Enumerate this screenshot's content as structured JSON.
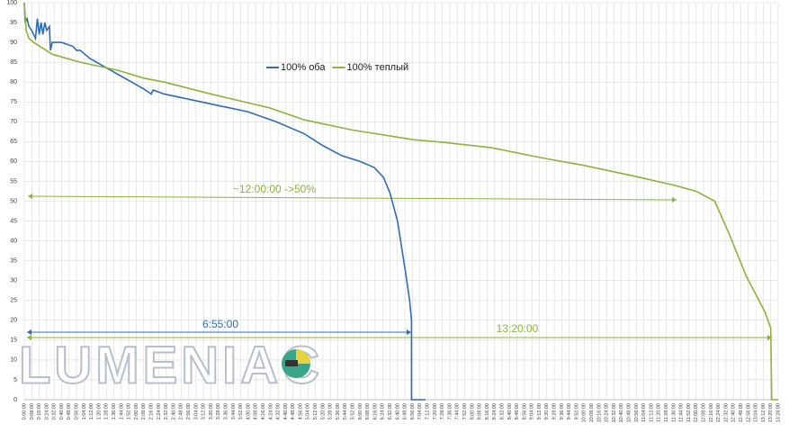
{
  "chart_data": {
    "type": "line",
    "legend": "top-center",
    "watermark": "LUMENIAC",
    "annotations": [
      "~12:00:00 ->50%",
      "6:55:00",
      "13:20:00"
    ],
    "ylim": [
      0,
      100
    ],
    "yticks": [
      0,
      5,
      10,
      15,
      20,
      25,
      30,
      35,
      40,
      45,
      50,
      55,
      60,
      65,
      70,
      75,
      80,
      85,
      90,
      95,
      100
    ],
    "xlim": [
      0,
      808
    ],
    "xticks": [
      {
        "value": 0,
        "label": "0:00:00"
      },
      {
        "value": 8,
        "label": "0:08:00"
      },
      {
        "value": 16,
        "label": "0:16:00"
      },
      {
        "value": 24,
        "label": "0:24:00"
      },
      {
        "value": 32,
        "label": "0:32:00"
      },
      {
        "value": 40,
        "label": "0:40:00"
      },
      {
        "value": 48,
        "label": "0:48:00"
      },
      {
        "value": 56,
        "label": "0:56:00"
      },
      {
        "value": 64,
        "label": "1:04:00"
      },
      {
        "value": 72,
        "label": "1:12:00"
      },
      {
        "value": 80,
        "label": "1:20:00"
      },
      {
        "value": 88,
        "label": "1:28:00"
      },
      {
        "value": 96,
        "label": "1:36:00"
      },
      {
        "value": 104,
        "label": "1:44:00"
      },
      {
        "value": 112,
        "label": "1:52:00"
      },
      {
        "value": 120,
        "label": "2:00:00"
      },
      {
        "value": 128,
        "label": "2:08:00"
      },
      {
        "value": 136,
        "label": "2:16:00"
      },
      {
        "value": 144,
        "label": "2:24:00"
      },
      {
        "value": 152,
        "label": "2:32:00"
      },
      {
        "value": 160,
        "label": "2:40:00"
      },
      {
        "value": 168,
        "label": "2:48:00"
      },
      {
        "value": 176,
        "label": "2:56:00"
      },
      {
        "value": 184,
        "label": "3:04:00"
      },
      {
        "value": 192,
        "label": "3:12:00"
      },
      {
        "value": 200,
        "label": "3:20:00"
      },
      {
        "value": 208,
        "label": "3:28:00"
      },
      {
        "value": 216,
        "label": "3:36:00"
      },
      {
        "value": 224,
        "label": "3:44:00"
      },
      {
        "value": 232,
        "label": "3:52:00"
      },
      {
        "value": 240,
        "label": "4:00:00"
      },
      {
        "value": 248,
        "label": "4:08:00"
      },
      {
        "value": 256,
        "label": "4:16:00"
      },
      {
        "value": 264,
        "label": "4:24:00"
      },
      {
        "value": 272,
        "label": "4:32:00"
      },
      {
        "value": 280,
        "label": "4:40:00"
      },
      {
        "value": 288,
        "label": "4:48:00"
      },
      {
        "value": 296,
        "label": "4:56:00"
      },
      {
        "value": 304,
        "label": "5:04:00"
      },
      {
        "value": 312,
        "label": "5:12:00"
      },
      {
        "value": 320,
        "label": "5:20:00"
      },
      {
        "value": 328,
        "label": "5:28:00"
      },
      {
        "value": 336,
        "label": "5:36:00"
      },
      {
        "value": 344,
        "label": "5:44:00"
      },
      {
        "value": 352,
        "label": "5:52:00"
      },
      {
        "value": 360,
        "label": "6:00:00"
      },
      {
        "value": 368,
        "label": "6:08:00"
      },
      {
        "value": 376,
        "label": "6:16:00"
      },
      {
        "value": 384,
        "label": "6:24:00"
      },
      {
        "value": 392,
        "label": "6:32:00"
      },
      {
        "value": 400,
        "label": "6:40:00"
      },
      {
        "value": 408,
        "label": "6:48:00"
      },
      {
        "value": 416,
        "label": "6:56:00"
      },
      {
        "value": 424,
        "label": "7:04:00"
      },
      {
        "value": 432,
        "label": "7:12:00"
      },
      {
        "value": 440,
        "label": "7:20:00"
      },
      {
        "value": 448,
        "label": "7:28:00"
      },
      {
        "value": 456,
        "label": "7:36:00"
      },
      {
        "value": 464,
        "label": "7:44:00"
      },
      {
        "value": 472,
        "label": "7:52:00"
      },
      {
        "value": 480,
        "label": "8:00:00"
      },
      {
        "value": 488,
        "label": "8:08:00"
      },
      {
        "value": 496,
        "label": "8:16:00"
      },
      {
        "value": 504,
        "label": "8:24:00"
      },
      {
        "value": 512,
        "label": "8:32:00"
      },
      {
        "value": 520,
        "label": "8:40:00"
      },
      {
        "value": 528,
        "label": "8:48:00"
      },
      {
        "value": 536,
        "label": "8:56:00"
      },
      {
        "value": 544,
        "label": "9:04:00"
      },
      {
        "value": 552,
        "label": "9:12:00"
      },
      {
        "value": 560,
        "label": "9:20:00"
      },
      {
        "value": 568,
        "label": "9:28:00"
      },
      {
        "value": 576,
        "label": "9:36:00"
      },
      {
        "value": 584,
        "label": "9:44:00"
      },
      {
        "value": 592,
        "label": "9:52:00"
      },
      {
        "value": 600,
        "label": "10:00:00"
      },
      {
        "value": 608,
        "label": "10:08:00"
      },
      {
        "value": 616,
        "label": "10:16:00"
      },
      {
        "value": 624,
        "label": "10:24:00"
      },
      {
        "value": 632,
        "label": "10:32:00"
      },
      {
        "value": 640,
        "label": "10:40:00"
      },
      {
        "value": 648,
        "label": "10:48:00"
      },
      {
        "value": 656,
        "label": "10:56:00"
      },
      {
        "value": 664,
        "label": "11:04:00"
      },
      {
        "value": 672,
        "label": "11:12:00"
      },
      {
        "value": 680,
        "label": "11:20:00"
      },
      {
        "value": 688,
        "label": "11:28:00"
      },
      {
        "value": 696,
        "label": "11:36:00"
      },
      {
        "value": 704,
        "label": "11:44:00"
      },
      {
        "value": 712,
        "label": "11:52:00"
      },
      {
        "value": 720,
        "label": "12:00:00"
      },
      {
        "value": 728,
        "label": "12:08:00"
      },
      {
        "value": 736,
        "label": "12:16:00"
      },
      {
        "value": 744,
        "label": "12:24:00"
      },
      {
        "value": 752,
        "label": "12:32:00"
      },
      {
        "value": 760,
        "label": "12:40:00"
      },
      {
        "value": 768,
        "label": "12:48:00"
      },
      {
        "value": 776,
        "label": "12:56:00"
      },
      {
        "value": 784,
        "label": "13:04:00"
      },
      {
        "value": 792,
        "label": "13:12:00"
      },
      {
        "value": 800,
        "label": "13:20:00"
      },
      {
        "value": 808,
        "label": "13:28:00"
      }
    ],
    "grid": true,
    "series": [
      {
        "name": "100% оба",
        "color": "#2e6db4",
        "x": [
          0,
          1,
          3,
          5,
          8,
          10,
          12,
          14,
          16,
          18,
          20,
          22,
          24,
          27,
          28,
          30,
          40,
          52,
          56,
          60,
          70,
          85,
          100,
          115,
          130,
          136,
          138,
          150,
          180,
          210,
          240,
          270,
          300,
          320,
          340,
          360,
          375,
          385,
          392,
          400,
          408,
          413,
          415,
          415,
          430
        ],
        "values": [
          100,
          95,
          96,
          94,
          93,
          92,
          91,
          96,
          92,
          95,
          92,
          95,
          93,
          94,
          88,
          90,
          90,
          89,
          88,
          88,
          86,
          84,
          82,
          80,
          78,
          77,
          78,
          77,
          75.5,
          74,
          72.5,
          70,
          67,
          64,
          61.5,
          60,
          58.5,
          56,
          52,
          45,
          33,
          25,
          20,
          0,
          0
        ]
      },
      {
        "name": "100% теплый",
        "color": "#8db33a",
        "x": [
          0,
          2,
          5,
          10,
          30,
          60,
          100,
          128,
          150,
          200,
          263,
          300,
          350,
          417,
          450,
          500,
          553,
          600,
          650,
          697,
          720,
          740,
          755,
          774,
          794,
          800,
          801,
          808
        ],
        "values": [
          100,
          93,
          91,
          90,
          87,
          85,
          83,
          81,
          80,
          77,
          73.5,
          70.5,
          68,
          65.5,
          64.8,
          63.5,
          61,
          59,
          56.5,
          54,
          52.5,
          50,
          42,
          31,
          22,
          18,
          0,
          0
        ]
      }
    ]
  }
}
